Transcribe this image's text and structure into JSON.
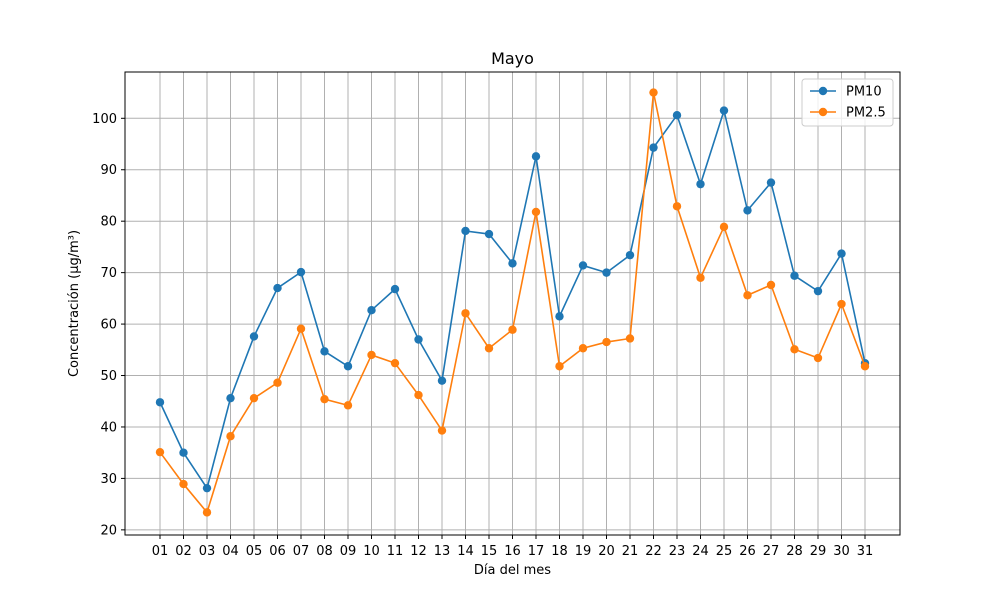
{
  "chart_data": {
    "type": "line",
    "title": "Mayo",
    "xlabel": "Día del mes",
    "ylabel": "Concentración (µg/m³)",
    "categories": [
      "01",
      "02",
      "03",
      "04",
      "05",
      "06",
      "07",
      "08",
      "09",
      "10",
      "11",
      "12",
      "13",
      "14",
      "15",
      "16",
      "17",
      "18",
      "19",
      "20",
      "21",
      "22",
      "23",
      "24",
      "25",
      "26",
      "27",
      "28",
      "29",
      "30",
      "31"
    ],
    "ylim": [
      19,
      109
    ],
    "yticks": [
      20,
      30,
      40,
      50,
      60,
      70,
      80,
      90,
      100
    ],
    "grid": true,
    "legend_position": "top-right",
    "series": [
      {
        "name": "PM10",
        "color": "#1f77b4",
        "values": [
          44.8,
          35.0,
          28.1,
          45.6,
          57.6,
          67.0,
          70.1,
          54.7,
          51.8,
          62.7,
          66.8,
          57.0,
          49.0,
          78.1,
          77.5,
          71.8,
          92.6,
          61.5,
          71.4,
          70.0,
          73.4,
          94.3,
          100.6,
          87.2,
          101.5,
          82.1,
          87.5,
          69.4,
          66.4,
          73.7,
          52.4
        ]
      },
      {
        "name": "PM2.5",
        "color": "#ff7f0e",
        "values": [
          35.1,
          28.9,
          23.4,
          38.2,
          45.6,
          48.6,
          59.1,
          45.4,
          44.2,
          54.0,
          52.4,
          46.2,
          39.3,
          62.1,
          55.3,
          58.9,
          81.8,
          51.8,
          55.3,
          56.5,
          57.2,
          105.0,
          82.9,
          69.0,
          78.9,
          65.6,
          67.6,
          55.1,
          53.4,
          63.9,
          51.8
        ]
      }
    ]
  }
}
